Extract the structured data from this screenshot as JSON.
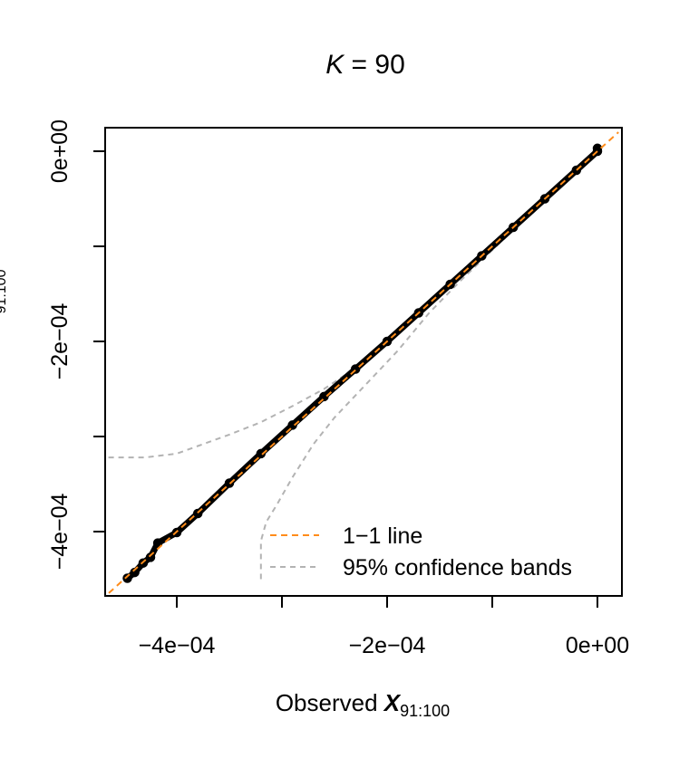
{
  "chart_data": {
    "type": "scatter",
    "title_var": "K",
    "title_eq": " = ",
    "title_value": "90",
    "xlabel_prefix": "Observed ",
    "xlabel_var": "X",
    "xlabel_sub": "91:100",
    "ylabel_sub": "91:100",
    "xlim": [
      -0.00048,
      2e-05
    ],
    "ylim": [
      -0.00047,
      2e-05
    ],
    "x_ticks": [
      {
        "value": -0.0004,
        "label": "−4e−04"
      },
      {
        "value": -0.0003,
        "label": ""
      },
      {
        "value": -0.0002,
        "label": "−2e−04"
      },
      {
        "value": -0.0001,
        "label": ""
      },
      {
        "value": 0.0,
        "label": "0e+00"
      }
    ],
    "y_ticks": [
      {
        "value": -0.0004,
        "label": "−4e−04"
      },
      {
        "value": -0.0003,
        "label": ""
      },
      {
        "value": -0.0002,
        "label": "−2e−04"
      },
      {
        "value": -0.0001,
        "label": ""
      },
      {
        "value": 0.0,
        "label": "0e+00"
      }
    ],
    "grid": false,
    "legend_position": "bottom-right",
    "legend": [
      {
        "label": "1−1 line",
        "color": "#ff8c1a",
        "style": "dashed"
      },
      {
        "label": "95% confidence bands",
        "color": "#b3b3b3",
        "style": "dashed"
      }
    ],
    "observed_points": [
      [
        -0.000447,
        -0.000449
      ],
      [
        -0.00044,
        -0.000443
      ],
      [
        -0.000432,
        -0.000433
      ],
      [
        -0.000425,
        -0.000427
      ],
      [
        -0.000418,
        -0.000412
      ],
      [
        -0.0004,
        -0.000401
      ],
      [
        -0.00038,
        -0.000381
      ],
      [
        -0.00035,
        -0.000349
      ],
      [
        -0.00032,
        -0.000318
      ],
      [
        -0.00029,
        -0.000288
      ],
      [
        -0.00026,
        -0.000258
      ],
      [
        -0.00023,
        -0.000229
      ],
      [
        -0.0002,
        -0.0002
      ],
      [
        -0.00017,
        -0.00017
      ],
      [
        -0.00014,
        -0.00014
      ],
      [
        -0.00011,
        -0.00011
      ],
      [
        -8e-05,
        -8e-05
      ],
      [
        -5e-05,
        -5e-05
      ],
      [
        -2e-05,
        -2e-05
      ],
      [
        0.0,
        0.0
      ],
      [
        0.0,
        3e-06
      ]
    ],
    "band_upper": [
      [
        -0.000465,
        -0.000322
      ],
      [
        -0.00043,
        -0.000322
      ],
      [
        -0.0004,
        -0.000318
      ],
      [
        -0.00038,
        -0.00031
      ],
      [
        -0.00035,
        -0.000298
      ],
      [
        -0.00032,
        -0.000285
      ],
      [
        -0.00029,
        -0.000268
      ],
      [
        -0.00026,
        -0.00025
      ],
      [
        -0.00023,
        -0.000228
      ],
      [
        -0.0002,
        -0.000203
      ],
      [
        -0.00017,
        -0.000172
      ],
      [
        -0.00014,
        -0.000141
      ],
      [
        -0.00011,
        -0.000111
      ],
      [
        -8e-05,
        -8.1e-05
      ],
      [
        -5e-05,
        -5.1e-05
      ],
      [
        -2e-05,
        -2.1e-05
      ],
      [
        0.0,
        -1e-06
      ]
    ],
    "band_lower": [
      [
        -0.00032,
        -0.00045
      ],
      [
        -0.00032,
        -0.00041
      ],
      [
        -0.000315,
        -0.00039
      ],
      [
        -0.000305,
        -0.000372
      ],
      [
        -0.00029,
        -0.000343
      ],
      [
        -0.00027,
        -0.000308
      ],
      [
        -0.00025,
        -0.00028
      ],
      [
        -0.00022,
        -0.000245
      ],
      [
        -0.00019,
        -0.00021
      ],
      [
        -0.00016,
        -0.00017
      ],
      [
        -0.00013,
        -0.000136
      ],
      [
        -0.0001,
        -0.000104
      ],
      [
        -7e-05,
        -7.2e-05
      ],
      [
        -4e-05,
        -4.1e-05
      ],
      [
        -1e-05,
        -1e-05
      ],
      [
        0.0,
        0.0
      ]
    ]
  }
}
